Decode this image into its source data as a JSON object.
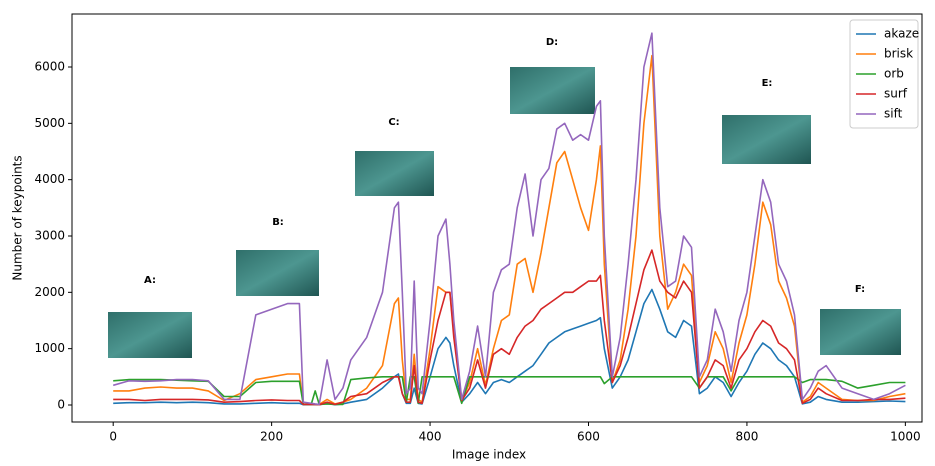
{
  "chart_data": {
    "type": "line",
    "xlabel": "Image index",
    "ylabel": "Number of keypoints",
    "xlim": [
      -52,
      1021
    ],
    "ylim": [
      -302,
      6941
    ],
    "xticks": [
      0,
      200,
      400,
      600,
      800,
      1000
    ],
    "yticks": [
      0,
      1000,
      2000,
      3000,
      4000,
      5000,
      6000
    ],
    "grid": false,
    "legend": "upper right",
    "annotations": [
      "A:",
      "B:",
      "C:",
      "D:",
      "E:",
      "F:"
    ],
    "x": [
      0,
      20,
      40,
      60,
      80,
      100,
      120,
      140,
      160,
      180,
      200,
      220,
      235,
      240,
      250,
      255,
      260,
      270,
      280,
      290,
      300,
      320,
      340,
      355,
      360,
      365,
      370,
      375,
      380,
      385,
      390,
      400,
      410,
      420,
      425,
      430,
      440,
      450,
      460,
      470,
      480,
      490,
      500,
      510,
      520,
      530,
      540,
      550,
      560,
      570,
      580,
      590,
      600,
      610,
      615,
      620,
      630,
      640,
      650,
      660,
      670,
      680,
      690,
      700,
      710,
      720,
      730,
      740,
      750,
      760,
      770,
      780,
      790,
      800,
      810,
      820,
      830,
      840,
      850,
      860,
      870,
      880,
      890,
      900,
      920,
      940,
      960,
      980,
      1000
    ],
    "series": [
      {
        "name": "akaze",
        "color": "#1f77b4",
        "values": [
          30,
          40,
          40,
          50,
          40,
          50,
          40,
          20,
          20,
          30,
          40,
          30,
          30,
          5,
          5,
          5,
          5,
          30,
          5,
          20,
          50,
          100,
          300,
          500,
          550,
          200,
          30,
          30,
          300,
          30,
          20,
          500,
          1000,
          1200,
          1100,
          700,
          50,
          200,
          400,
          200,
          400,
          450,
          400,
          500,
          600,
          700,
          900,
          1100,
          1200,
          1300,
          1350,
          1400,
          1450,
          1500,
          1550,
          1000,
          300,
          500,
          800,
          1300,
          1800,
          2050,
          1700,
          1300,
          1200,
          1500,
          1400,
          200,
          300,
          500,
          400,
          150,
          400,
          600,
          900,
          1100,
          1000,
          800,
          700,
          500,
          20,
          50,
          150,
          100,
          50,
          50,
          60,
          70,
          60
        ]
      },
      {
        "name": "brisk",
        "color": "#ff7f0e",
        "values": [
          250,
          250,
          300,
          320,
          300,
          300,
          250,
          80,
          200,
          450,
          500,
          550,
          550,
          20,
          10,
          10,
          10,
          100,
          20,
          50,
          100,
          300,
          700,
          1800,
          1900,
          800,
          100,
          100,
          900,
          100,
          50,
          1000,
          2100,
          2000,
          2000,
          1300,
          80,
          400,
          1000,
          350,
          1000,
          1500,
          1600,
          2500,
          2600,
          2000,
          2700,
          3500,
          4300,
          4500,
          4000,
          3500,
          3100,
          4000,
          4600,
          2500,
          400,
          800,
          1700,
          3000,
          5000,
          6200,
          3000,
          1700,
          2000,
          2500,
          2300,
          400,
          700,
          1300,
          1000,
          400,
          1100,
          1600,
          2500,
          3600,
          3200,
          2200,
          1900,
          1400,
          50,
          150,
          400,
          300,
          100,
          80,
          80,
          150,
          200
        ]
      },
      {
        "name": "orb",
        "color": "#2ca02c",
        "values": [
          430,
          450,
          450,
          450,
          440,
          430,
          420,
          150,
          150,
          400,
          420,
          420,
          420,
          10,
          10,
          250,
          10,
          20,
          10,
          10,
          450,
          480,
          500,
          500,
          500,
          500,
          50,
          500,
          500,
          30,
          500,
          500,
          500,
          500,
          500,
          500,
          30,
          500,
          500,
          500,
          500,
          500,
          500,
          500,
          500,
          500,
          500,
          500,
          500,
          500,
          500,
          500,
          500,
          500,
          500,
          380,
          500,
          500,
          500,
          500,
          500,
          500,
          500,
          500,
          500,
          500,
          500,
          300,
          500,
          500,
          500,
          250,
          500,
          500,
          500,
          500,
          500,
          500,
          500,
          500,
          400,
          450,
          450,
          450,
          420,
          300,
          350,
          400,
          400
        ]
      },
      {
        "name": "surf",
        "color": "#d62728",
        "values": [
          100,
          100,
          80,
          100,
          100,
          100,
          90,
          50,
          60,
          80,
          90,
          80,
          80,
          10,
          10,
          10,
          5,
          50,
          10,
          50,
          150,
          200,
          400,
          500,
          500,
          200,
          50,
          50,
          700,
          50,
          30,
          800,
          1500,
          2000,
          2000,
          1200,
          80,
          300,
          800,
          300,
          900,
          1000,
          900,
          1200,
          1400,
          1500,
          1700,
          1800,
          1900,
          2000,
          2000,
          2100,
          2200,
          2200,
          2300,
          1500,
          400,
          700,
          1200,
          1800,
          2400,
          2750,
          2200,
          2000,
          1900,
          2200,
          2000,
          300,
          500,
          800,
          700,
          300,
          800,
          1000,
          1300,
          1500,
          1400,
          1100,
          1000,
          800,
          30,
          100,
          300,
          200,
          80,
          80,
          100,
          100,
          120
        ]
      },
      {
        "name": "sift",
        "color": "#9467bd",
        "values": [
          350,
          430,
          420,
          430,
          450,
          450,
          430,
          100,
          100,
          1600,
          1700,
          1800,
          1800,
          50,
          30,
          20,
          10,
          800,
          100,
          300,
          800,
          1200,
          2000,
          3500,
          3600,
          2000,
          200,
          300,
          2200,
          300,
          200,
          1500,
          3000,
          3300,
          2500,
          1500,
          100,
          600,
          1400,
          500,
          2000,
          2400,
          2500,
          3500,
          4100,
          3000,
          4000,
          4200,
          4900,
          5000,
          4700,
          4800,
          4700,
          5300,
          5400,
          3000,
          500,
          1200,
          2500,
          4000,
          6000,
          6600,
          3500,
          2100,
          2200,
          3000,
          2800,
          500,
          800,
          1700,
          1300,
          600,
          1500,
          2000,
          3000,
          4000,
          3600,
          2500,
          2200,
          1600,
          100,
          300,
          600,
          700,
          300,
          200,
          100,
          200,
          350
        ]
      }
    ]
  }
}
